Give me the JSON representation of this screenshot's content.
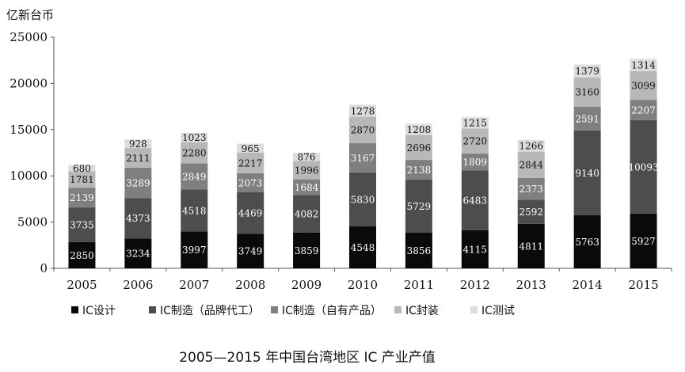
{
  "chart_data": {
    "type": "bar",
    "stacked": true,
    "title": "2005—2015 年中国台湾地区 IC 产业产值",
    "ylabel": "亿新台币",
    "ylim": [
      0,
      25000
    ],
    "yticks": [
      0,
      5000,
      10000,
      15000,
      20000,
      25000
    ],
    "grid": false,
    "legend_position": "bottom",
    "categories": [
      "2005",
      "2006",
      "2007",
      "2008",
      "2009",
      "2010",
      "2011",
      "2012",
      "2013",
      "2014",
      "2015"
    ],
    "series": [
      {
        "name": "IC设计",
        "color": "#0a0a0a",
        "label_color": "#ffffff",
        "values": [
          2850,
          3234,
          3997,
          3749,
          3859,
          4548,
          3856,
          4115,
          4811,
          5763,
          5927
        ]
      },
      {
        "name": "IC制造（品牌代工）",
        "color": "#4d4d4d",
        "label_color": "#ffffff",
        "values": [
          3735,
          4373,
          4518,
          4469,
          4082,
          5830,
          5729,
          6483,
          2592,
          9140,
          10093
        ]
      },
      {
        "name": "IC制造（自有产品）",
        "color": "#7f7f7f",
        "label_color": "#ffffff",
        "values": [
          2139,
          3289,
          2849,
          2073,
          1684,
          3167,
          2138,
          1809,
          2373,
          2591,
          2207
        ]
      },
      {
        "name": "IC封装",
        "color": "#b8b8b8",
        "label_color": "#111111",
        "values": [
          1781,
          2111,
          2280,
          2217,
          1996,
          2870,
          2696,
          2720,
          2844,
          3160,
          3099
        ]
      },
      {
        "name": "IC测试",
        "color": "#dcdcdc",
        "label_color": "#111111",
        "values": [
          680,
          928,
          1023,
          965,
          876,
          1278,
          1208,
          1215,
          1266,
          1379,
          1314
        ]
      }
    ]
  }
}
